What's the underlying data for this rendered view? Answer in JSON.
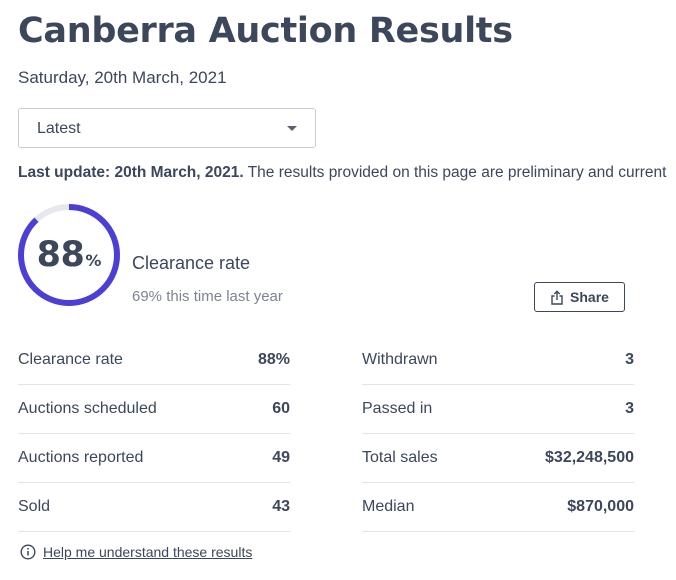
{
  "header": {
    "title": "Canberra Auction Results",
    "date": "Saturday, 20th March, 2021"
  },
  "filter": {
    "selected": "Latest",
    "icon": "chevron-down-icon"
  },
  "update": {
    "bold": "Last update: 20th March, 2021.",
    "text": " The results provided on this page are preliminary and current"
  },
  "clearance": {
    "number": "88",
    "percent_sign": "%",
    "rate_fraction": 0.88,
    "label": "Clearance rate",
    "comparison": "69% this time last year",
    "ring_color": "#4b3fd6",
    "track_color": "#e6e8ec"
  },
  "share": {
    "label": "Share",
    "icon": "share-icon"
  },
  "stats_left": [
    {
      "label": "Clearance rate",
      "value": "88%"
    },
    {
      "label": "Auctions scheduled",
      "value": "60"
    },
    {
      "label": "Auctions reported",
      "value": "49"
    },
    {
      "label": "Sold",
      "value": "43"
    }
  ],
  "stats_right": [
    {
      "label": "Withdrawn",
      "value": "3"
    },
    {
      "label": "Passed in",
      "value": "3"
    },
    {
      "label": "Total sales",
      "value": "$32,248,500"
    },
    {
      "label": "Median",
      "value": "$870,000"
    }
  ],
  "help": {
    "label": "Help me understand these results",
    "icon": "info-icon"
  }
}
